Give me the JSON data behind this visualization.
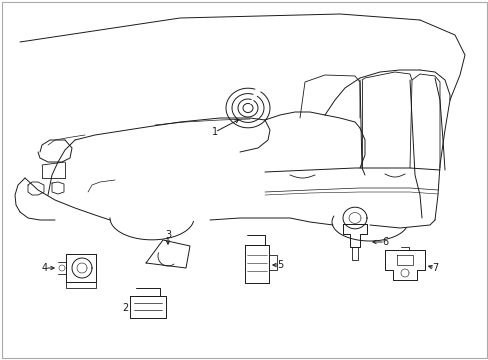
{
  "background_color": "#ffffff",
  "fig_width": 4.89,
  "fig_height": 3.6,
  "dpi": 100,
  "line_color": "#1a1a1a",
  "line_width": 0.7,
  "label_fontsize": 7.0,
  "border_color": "#aaaaaa"
}
